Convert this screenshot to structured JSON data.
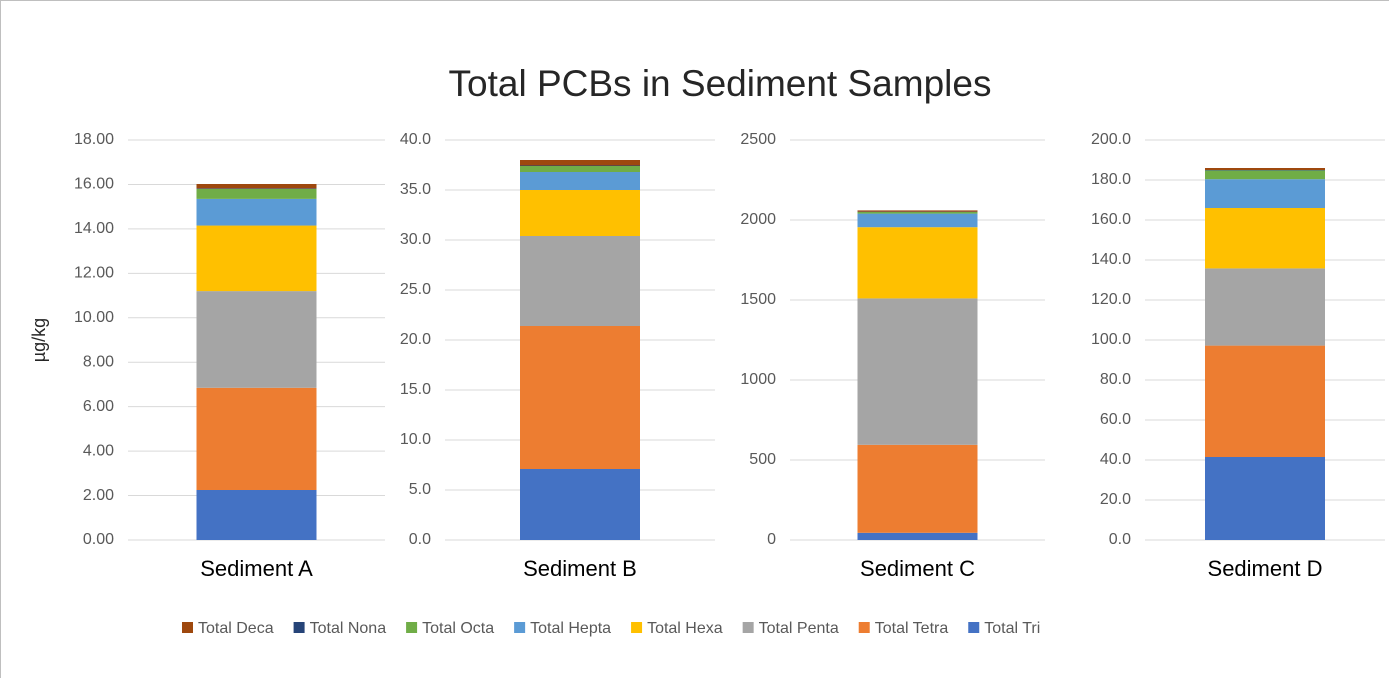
{
  "chart_data": [
    {
      "type": "bar",
      "stacked": true,
      "title": "Total PCBs in Sediment Samples",
      "y_label": "µg/kg",
      "categories": [
        "Sediment A"
      ],
      "series": [
        {
          "name": "Total Tri",
          "color": "#4472c4",
          "values": [
            2.25
          ]
        },
        {
          "name": "Total Tetra",
          "color": "#ed7d31",
          "values": [
            4.6
          ]
        },
        {
          "name": "Total Penta",
          "color": "#a5a5a5",
          "values": [
            4.35
          ]
        },
        {
          "name": "Total Hexa",
          "color": "#ffc000",
          "values": [
            2.95
          ]
        },
        {
          "name": "Total Hepta",
          "color": "#5b9bd5",
          "values": [
            1.2
          ]
        },
        {
          "name": "Total Octa",
          "color": "#70ad47",
          "values": [
            0.45
          ]
        },
        {
          "name": "Total Nona",
          "color": "#264478",
          "values": [
            0.02
          ]
        },
        {
          "name": "Total Deca",
          "color": "#9e480e",
          "values": [
            0.2
          ]
        }
      ],
      "ylim": [
        0,
        18
      ],
      "yticks": [
        {
          "value": 0,
          "label": "0.00"
        },
        {
          "value": 2,
          "label": "2.00"
        },
        {
          "value": 4,
          "label": "4.00"
        },
        {
          "value": 6,
          "label": "6.00"
        },
        {
          "value": 8,
          "label": "8.00"
        },
        {
          "value": 10,
          "label": "10.00"
        },
        {
          "value": 12,
          "label": "12.00"
        },
        {
          "value": 14,
          "label": "14.00"
        },
        {
          "value": 16,
          "label": "16.00"
        },
        {
          "value": 18,
          "label": "18.00"
        }
      ],
      "grid": true
    },
    {
      "type": "bar",
      "stacked": true,
      "categories": [
        "Sediment B"
      ],
      "series": [
        {
          "color": "#4472c4",
          "values": [
            7.1
          ]
        },
        {
          "color": "#ed7d31",
          "values": [
            14.3
          ]
        },
        {
          "color": "#a5a5a5",
          "values": [
            9.0
          ]
        },
        {
          "color": "#ffc000",
          "values": [
            4.6
          ]
        },
        {
          "color": "#5b9bd5",
          "values": [
            1.8
          ]
        },
        {
          "color": "#70ad47",
          "values": [
            0.6
          ]
        },
        {
          "color": "#264478",
          "values": [
            0.05
          ]
        },
        {
          "color": "#9e480e",
          "values": [
            0.55
          ]
        }
      ],
      "ylim": [
        0,
        40
      ],
      "yticks": [
        {
          "value": 0,
          "label": "0.0"
        },
        {
          "value": 5,
          "label": "5.0"
        },
        {
          "value": 10,
          "label": "10.0"
        },
        {
          "value": 15,
          "label": "15.0"
        },
        {
          "value": 20,
          "label": "20.0"
        },
        {
          "value": 25,
          "label": "25.0"
        },
        {
          "value": 30,
          "label": "30.0"
        },
        {
          "value": 35,
          "label": "35.0"
        },
        {
          "value": 40,
          "label": "40.0"
        }
      ],
      "grid": true
    },
    {
      "type": "bar",
      "stacked": true,
      "categories": [
        "Sediment C"
      ],
      "series": [
        {
          "color": "#4472c4",
          "values": [
            45
          ]
        },
        {
          "color": "#ed7d31",
          "values": [
            550
          ]
        },
        {
          "color": "#a5a5a5",
          "values": [
            915
          ]
        },
        {
          "color": "#ffc000",
          "values": [
            445
          ]
        },
        {
          "color": "#5b9bd5",
          "values": [
            85
          ]
        },
        {
          "color": "#70ad47",
          "values": [
            10
          ]
        },
        {
          "color": "#264478",
          "values": [
            2
          ]
        },
        {
          "color": "#9e480e",
          "values": [
            8
          ]
        }
      ],
      "ylim": [
        0,
        2500
      ],
      "yticks": [
        0,
        500,
        1000,
        1500,
        2000,
        2500
      ],
      "grid": true
    },
    {
      "type": "bar",
      "stacked": true,
      "categories": [
        "Sediment D"
      ],
      "series": [
        {
          "color": "#4472c4",
          "values": [
            41.5
          ]
        },
        {
          "color": "#ed7d31",
          "values": [
            55.7
          ]
        },
        {
          "color": "#a5a5a5",
          "values": [
            38.6
          ]
        },
        {
          "color": "#ffc000",
          "values": [
            30.2
          ]
        },
        {
          "color": "#5b9bd5",
          "values": [
            14.4
          ]
        },
        {
          "color": "#70ad47",
          "values": [
            4.4
          ]
        },
        {
          "color": "#264478",
          "values": [
            0.2
          ]
        },
        {
          "color": "#9e480e",
          "values": [
            1.0
          ]
        }
      ],
      "ylim": [
        0,
        200
      ],
      "yticks": [
        {
          "value": 0,
          "label": "0.0"
        },
        {
          "value": 20,
          "label": "20.0"
        },
        {
          "value": 40,
          "label": "40.0"
        },
        {
          "value": 60,
          "label": "60.0"
        },
        {
          "value": 80,
          "label": "80.0"
        },
        {
          "value": 100,
          "label": "100.0"
        },
        {
          "value": 120,
          "label": "120.0"
        },
        {
          "value": 140,
          "label": "140.0"
        },
        {
          "value": 160,
          "label": "160.0"
        },
        {
          "value": 180,
          "label": "180.0"
        },
        {
          "value": 200,
          "label": "200.0"
        }
      ],
      "grid": true
    }
  ]
}
